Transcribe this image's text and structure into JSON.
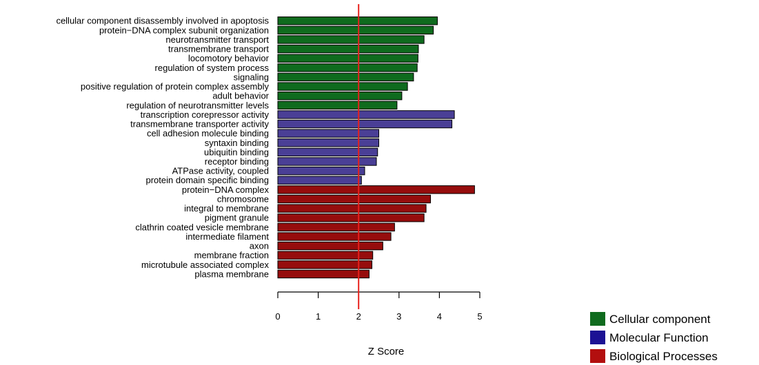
{
  "chart_data": {
    "type": "bar",
    "orientation": "horizontal",
    "xlabel": "Z Score",
    "xlim": [
      0,
      5
    ],
    "x_ticks": [
      0,
      1,
      2,
      3,
      4,
      5
    ],
    "threshold": 2,
    "threshold_color": "#e8211c",
    "grid": false,
    "legend_position": "bottom-right",
    "categories": [
      "cellular component disassembly involved in apoptosis",
      "protein−DNA complex subunit organization",
      "neurotransmitter transport",
      "transmembrane transport",
      "locomotory behavior",
      "regulation of system process",
      "signaling",
      "positive regulation of protein complex assembly",
      "adult behavior",
      "regulation of neurotransmitter levels",
      "transcription corepressor activity",
      "transmembrane transporter activity",
      "cell adhesion molecule binding",
      "syntaxin binding",
      "ubiquitin binding",
      "receptor binding",
      "ATPase activity, coupled",
      "protein domain specific binding",
      "protein−DNA complex",
      "chromosome",
      "integral to membrane",
      "pigment granule",
      "clathrin coated vesicle membrane",
      "intermediate filament",
      "axon",
      "membrane fraction",
      "microtubule associated complex",
      "plasma membrane"
    ],
    "values": [
      3.95,
      3.85,
      3.62,
      3.48,
      3.47,
      3.45,
      3.36,
      3.21,
      3.07,
      2.95,
      4.37,
      4.31,
      2.5,
      2.5,
      2.47,
      2.44,
      2.15,
      2.07,
      4.87,
      3.78,
      3.67,
      3.62,
      2.89,
      2.8,
      2.6,
      2.35,
      2.33,
      2.26
    ],
    "groups": [
      0,
      0,
      0,
      0,
      0,
      0,
      0,
      0,
      0,
      0,
      1,
      1,
      1,
      1,
      1,
      1,
      1,
      1,
      2,
      2,
      2,
      2,
      2,
      2,
      2,
      2,
      2,
      2
    ],
    "series": [
      {
        "name": "Cellular component",
        "color": "#0f6b1e"
      },
      {
        "name": "Molecular Function",
        "color": "#4a3f96"
      },
      {
        "name": "Biological Processes",
        "color": "#960d0d"
      }
    ],
    "legend_colors": [
      "#0f6b1e",
      "#1c1294",
      "#b30f0f"
    ]
  }
}
